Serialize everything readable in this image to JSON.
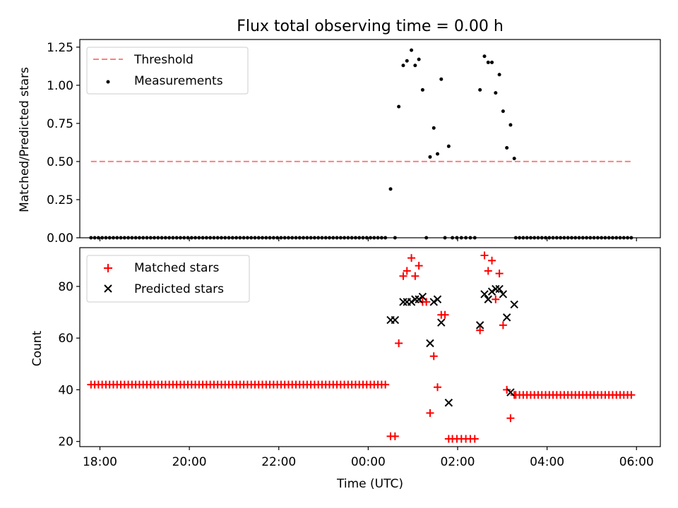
{
  "title": "Flux total observing time = 0.00 h",
  "colors": {
    "threshold": "#ff7f7f",
    "measurements": "#000000",
    "matched": "#ff0000",
    "predicted": "#000000"
  },
  "chart_data": [
    {
      "type": "scatter",
      "ylabel": "Matched/Predicted stars",
      "xlabel": "",
      "xlim": [
        "17:33",
        "06:32"
      ],
      "ylim": [
        0,
        1.3
      ],
      "yticks": [
        0.0,
        0.25,
        0.5,
        0.75,
        1.0,
        1.25
      ],
      "ytick_labels": [
        "0.00",
        "0.25",
        "0.50",
        "0.75",
        "1.00",
        "1.25"
      ],
      "legend_position": "top-left",
      "legend": [
        "Threshold",
        "Measurements"
      ],
      "threshold": {
        "name": "Threshold",
        "y": 0.5,
        "x_start": "17:48",
        "x_end": "05:54",
        "style": "dashed"
      },
      "measurements": {
        "name": "Measurements",
        "zero_ranges": [
          {
            "start": "17:48",
            "end": "00:24",
            "step_min": 5
          },
          {
            "start": "03:18",
            "end": "05:54",
            "step_min": 5
          }
        ],
        "points": [
          [
            "00:30",
            0.32
          ],
          [
            "00:36",
            0.0
          ],
          [
            "00:41",
            0.86
          ],
          [
            "00:47",
            1.13
          ],
          [
            "00:52",
            1.16
          ],
          [
            "00:58",
            1.23
          ],
          [
            "01:03",
            1.13
          ],
          [
            "01:08",
            1.17
          ],
          [
            "01:13",
            0.97
          ],
          [
            "01:18",
            0.0
          ],
          [
            "01:23",
            0.53
          ],
          [
            "01:28",
            0.72
          ],
          [
            "01:33",
            0.55
          ],
          [
            "01:38",
            1.04
          ],
          [
            "01:43",
            0.0
          ],
          [
            "01:48",
            0.6
          ],
          [
            "01:53",
            0.0
          ],
          [
            "01:59",
            0.0
          ],
          [
            "02:05",
            0.0
          ],
          [
            "02:11",
            0.0
          ],
          [
            "02:17",
            0.0
          ],
          [
            "02:23",
            0.0
          ],
          [
            "02:30",
            0.97
          ],
          [
            "02:36",
            1.19
          ],
          [
            "02:41",
            1.15
          ],
          [
            "02:46",
            1.15
          ],
          [
            "02:51",
            0.95
          ],
          [
            "02:56",
            1.07
          ],
          [
            "03:01",
            0.83
          ],
          [
            "03:06",
            0.59
          ],
          [
            "03:11",
            0.74
          ],
          [
            "03:16",
            0.52
          ]
        ]
      }
    },
    {
      "type": "scatter",
      "ylabel": "Count",
      "xlabel": "Time (UTC)",
      "xlim": [
        "17:33",
        "06:32"
      ],
      "ylim": [
        18,
        95
      ],
      "yticks": [
        20,
        40,
        60,
        80
      ],
      "ytick_labels": [
        "20",
        "40",
        "60",
        "80"
      ],
      "xticks": [
        "18:00",
        "20:00",
        "22:00",
        "00:00",
        "02:00",
        "04:00",
        "06:00"
      ],
      "legend_position": "top-left",
      "legend": [
        "Matched stars",
        "Predicted stars"
      ],
      "series": [
        {
          "name": "Matched stars",
          "marker": "+",
          "constant_ranges": [
            {
              "start": "17:48",
              "end": "00:24",
              "step_min": 5,
              "y": 42
            },
            {
              "start": "03:18",
              "end": "05:54",
              "step_min": 5,
              "y": 38
            }
          ],
          "points": [
            [
              "00:30",
              22
            ],
            [
              "00:36",
              22
            ],
            [
              "00:41",
              58
            ],
            [
              "00:47",
              84
            ],
            [
              "00:52",
              86
            ],
            [
              "00:58",
              91
            ],
            [
              "01:03",
              84
            ],
            [
              "01:08",
              88
            ],
            [
              "01:13",
              74
            ],
            [
              "01:18",
              74
            ],
            [
              "01:23",
              31
            ],
            [
              "01:28",
              53
            ],
            [
              "01:33",
              41
            ],
            [
              "01:38",
              69
            ],
            [
              "01:43",
              69
            ],
            [
              "01:48",
              21
            ],
            [
              "01:53",
              21
            ],
            [
              "01:59",
              21
            ],
            [
              "02:05",
              21
            ],
            [
              "02:11",
              21
            ],
            [
              "02:17",
              21
            ],
            [
              "02:23",
              21
            ],
            [
              "02:30",
              63
            ],
            [
              "02:36",
              92
            ],
            [
              "02:41",
              86
            ],
            [
              "02:46",
              90
            ],
            [
              "02:51",
              75
            ],
            [
              "02:56",
              85
            ],
            [
              "03:01",
              65
            ],
            [
              "03:06",
              40
            ],
            [
              "03:11",
              29
            ],
            [
              "03:16",
              38
            ]
          ]
        },
        {
          "name": "Predicted stars",
          "marker": "x",
          "points": [
            [
              "00:30",
              67
            ],
            [
              "00:36",
              67
            ],
            [
              "00:47",
              74
            ],
            [
              "00:52",
              74
            ],
            [
              "00:58",
              74
            ],
            [
              "01:03",
              75
            ],
            [
              "01:08",
              75
            ],
            [
              "01:13",
              76
            ],
            [
              "01:23",
              58
            ],
            [
              "01:28",
              74
            ],
            [
              "01:33",
              75
            ],
            [
              "01:38",
              66
            ],
            [
              "01:48",
              35
            ],
            [
              "02:30",
              65
            ],
            [
              "02:36",
              77
            ],
            [
              "02:41",
              75
            ],
            [
              "02:46",
              78
            ],
            [
              "02:51",
              79
            ],
            [
              "02:56",
              79
            ],
            [
              "03:01",
              77
            ],
            [
              "03:06",
              68
            ],
            [
              "03:11",
              39
            ],
            [
              "03:16",
              73
            ]
          ]
        }
      ]
    }
  ]
}
